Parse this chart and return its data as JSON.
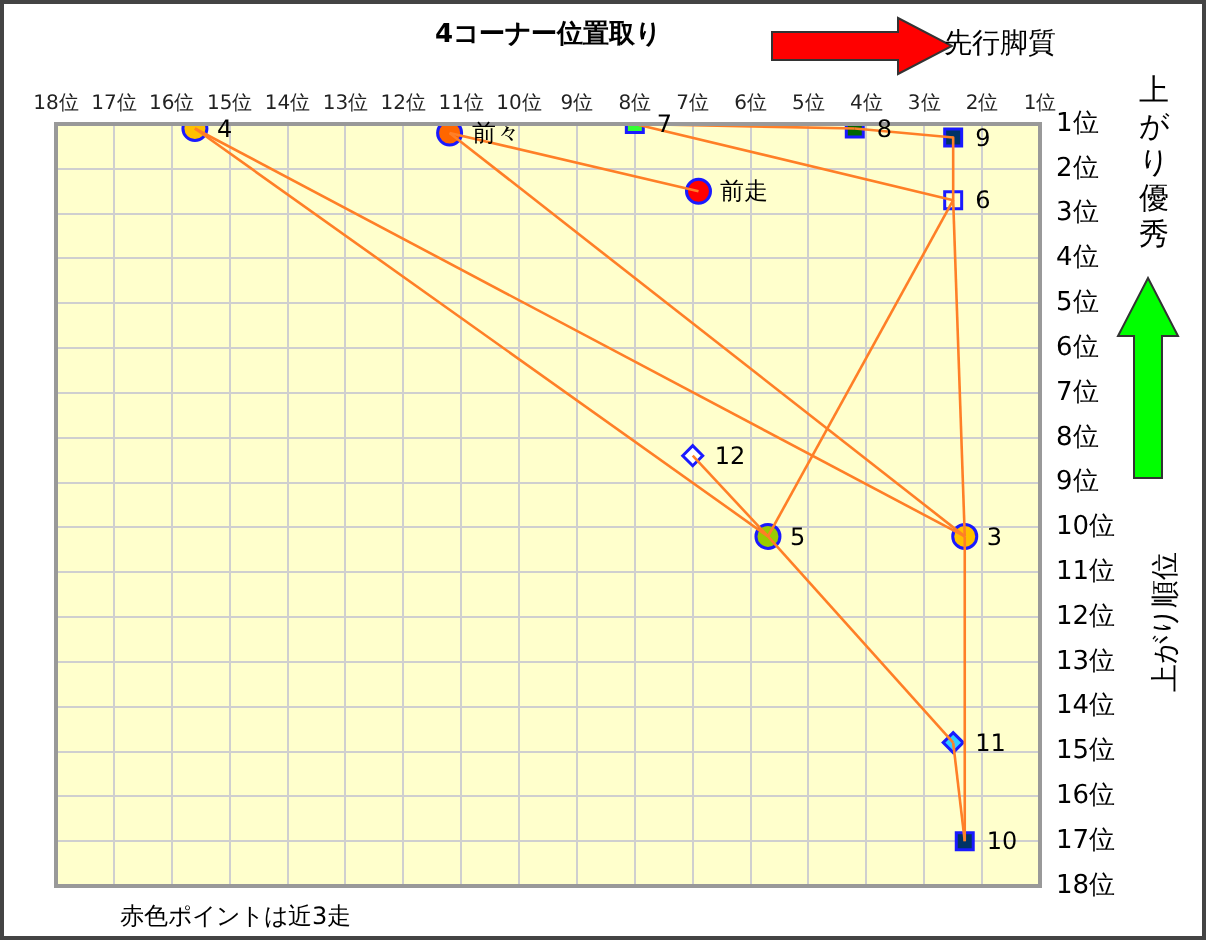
{
  "chart_data": {
    "type": "scatter",
    "xlabel": "4コーナー位置取り",
    "ylabel": "上がり順位",
    "annotations": [
      "先行脚質",
      "上がり優秀",
      "赤色ポイントは近3走"
    ],
    "xlim": [
      18,
      1
    ],
    "ylim": [
      18,
      1
    ],
    "xticks": [
      {
        "value": 18,
        "label": "18位"
      },
      {
        "value": 17,
        "label": "17位"
      },
      {
        "value": 16,
        "label": "16位"
      },
      {
        "value": 15,
        "label": "15位"
      },
      {
        "value": 14,
        "label": "14位"
      },
      {
        "value": 13,
        "label": "13位"
      },
      {
        "value": 12,
        "label": "12位"
      },
      {
        "value": 11,
        "label": "11位"
      },
      {
        "value": 10,
        "label": "10位"
      },
      {
        "value": 9,
        "label": "9位"
      },
      {
        "value": 8,
        "label": "8位"
      },
      {
        "value": 7,
        "label": "7位"
      },
      {
        "value": 6,
        "label": "6位"
      },
      {
        "value": 5,
        "label": "5位"
      },
      {
        "value": 4,
        "label": "4位"
      },
      {
        "value": 3,
        "label": "3位"
      },
      {
        "value": 2,
        "label": "2位"
      },
      {
        "value": 1,
        "label": "1位"
      }
    ],
    "yticks": [
      {
        "value": 1,
        "label": "1位"
      },
      {
        "value": 2,
        "label": "2位"
      },
      {
        "value": 3,
        "label": "3位"
      },
      {
        "value": 4,
        "label": "4位"
      },
      {
        "value": 5,
        "label": "5位"
      },
      {
        "value": 6,
        "label": "6位"
      },
      {
        "value": 7,
        "label": "7位"
      },
      {
        "value": 8,
        "label": "8位"
      },
      {
        "value": 9,
        "label": "9位"
      },
      {
        "value": 10,
        "label": "10位"
      },
      {
        "value": 11,
        "label": "11位"
      },
      {
        "value": 12,
        "label": "12位"
      },
      {
        "value": 13,
        "label": "13位"
      },
      {
        "value": 14,
        "label": "14位"
      },
      {
        "value": 15,
        "label": "15位"
      },
      {
        "value": 16,
        "label": "16位"
      },
      {
        "value": 17,
        "label": "17位"
      },
      {
        "value": 18,
        "label": "18位"
      }
    ],
    "grid": true,
    "legend": false,
    "series": [
      {
        "type": "line",
        "color": "#ff7f27",
        "marker": "none",
        "x": [
          15.6,
          5.7
        ],
        "values": [
          1.1,
          10.2
        ]
      },
      {
        "type": "line",
        "color": "#ff7f27",
        "marker": "none",
        "x": [
          5.7,
          2.5
        ],
        "values": [
          10.2,
          14.8
        ]
      },
      {
        "type": "line",
        "color": "#ff7f27",
        "marker": "none",
        "x": [
          2.5,
          2.3
        ],
        "values": [
          14.8,
          17.0
        ]
      },
      {
        "type": "line",
        "color": "#ff7f27",
        "marker": "none",
        "x": [
          2.3,
          2.3
        ],
        "values": [
          17.0,
          10.2
        ]
      },
      {
        "type": "line",
        "color": "#ff7f27",
        "marker": "none",
        "x": [
          2.3,
          15.6
        ],
        "values": [
          10.2,
          1.1
        ]
      },
      {
        "type": "line",
        "color": "#ff7f27",
        "marker": "none",
        "x": [
          11.2,
          6.9
        ],
        "values": [
          1.2,
          2.5
        ]
      },
      {
        "type": "line",
        "color": "#ff7f27",
        "marker": "none",
        "x": [
          11.2,
          2.3
        ],
        "values": [
          1.2,
          10.2
        ]
      },
      {
        "type": "line",
        "color": "#ff7f27",
        "marker": "none",
        "x": [
          8.0,
          4.2
        ],
        "values": [
          1.0,
          1.1
        ]
      },
      {
        "type": "line",
        "color": "#ff7f27",
        "marker": "none",
        "x": [
          4.2,
          2.5
        ],
        "values": [
          1.1,
          1.3
        ]
      },
      {
        "type": "line",
        "color": "#ff7f27",
        "marker": "none",
        "x": [
          2.5,
          2.5
        ],
        "values": [
          1.3,
          2.7
        ]
      },
      {
        "type": "line",
        "color": "#ff7f27",
        "marker": "none",
        "x": [
          2.5,
          2.3
        ],
        "values": [
          2.7,
          10.2
        ]
      },
      {
        "type": "line",
        "color": "#ff7f27",
        "marker": "none",
        "x": [
          8.0,
          2.5
        ],
        "values": [
          1.0,
          2.7
        ]
      },
      {
        "type": "line",
        "color": "#ff7f27",
        "marker": "none",
        "x": [
          2.5,
          5.7
        ],
        "values": [
          2.7,
          10.2
        ]
      },
      {
        "type": "line",
        "color": "#ff7f27",
        "marker": "none",
        "x": [
          7.0,
          5.7
        ],
        "values": [
          8.4,
          10.2
        ]
      },
      {
        "name": "4",
        "color": "#ffc000",
        "marker": "circle",
        "x": [
          15.6
        ],
        "values": [
          1.1
        ]
      },
      {
        "name": "前々",
        "color": "#ff6600",
        "marker": "circle",
        "x": [
          11.2
        ],
        "values": [
          1.2
        ]
      },
      {
        "name": "7",
        "color": "#33ff33",
        "marker": "square",
        "x": [
          8.0
        ],
        "values": [
          1.0
        ]
      },
      {
        "name": "8",
        "color": "#006600",
        "marker": "square",
        "x": [
          4.2
        ],
        "values": [
          1.1
        ]
      },
      {
        "name": "9",
        "color": "#003366",
        "marker": "square",
        "x": [
          2.5
        ],
        "values": [
          1.3
        ]
      },
      {
        "name": "前走",
        "color": "#ff0000",
        "marker": "circle",
        "x": [
          6.9
        ],
        "values": [
          2.5
        ]
      },
      {
        "name": "6",
        "color": "#ffffcc",
        "marker": "square",
        "x": [
          2.5
        ],
        "values": [
          2.7
        ]
      },
      {
        "name": "12",
        "color": "#ffffff",
        "marker": "diamond",
        "x": [
          7.0
        ],
        "values": [
          8.4
        ]
      },
      {
        "name": "5",
        "color": "#99cc00",
        "marker": "circle",
        "x": [
          5.7
        ],
        "values": [
          10.2
        ]
      },
      {
        "name": "3",
        "color": "#ffc000",
        "marker": "circle",
        "x": [
          2.3
        ],
        "values": [
          10.2
        ]
      },
      {
        "name": "11",
        "color": "#33ccff",
        "marker": "diamond",
        "x": [
          2.5
        ],
        "values": [
          14.8
        ]
      },
      {
        "name": "10",
        "color": "#003366",
        "marker": "square",
        "x": [
          2.3
        ],
        "values": [
          17.0
        ]
      }
    ]
  }
}
